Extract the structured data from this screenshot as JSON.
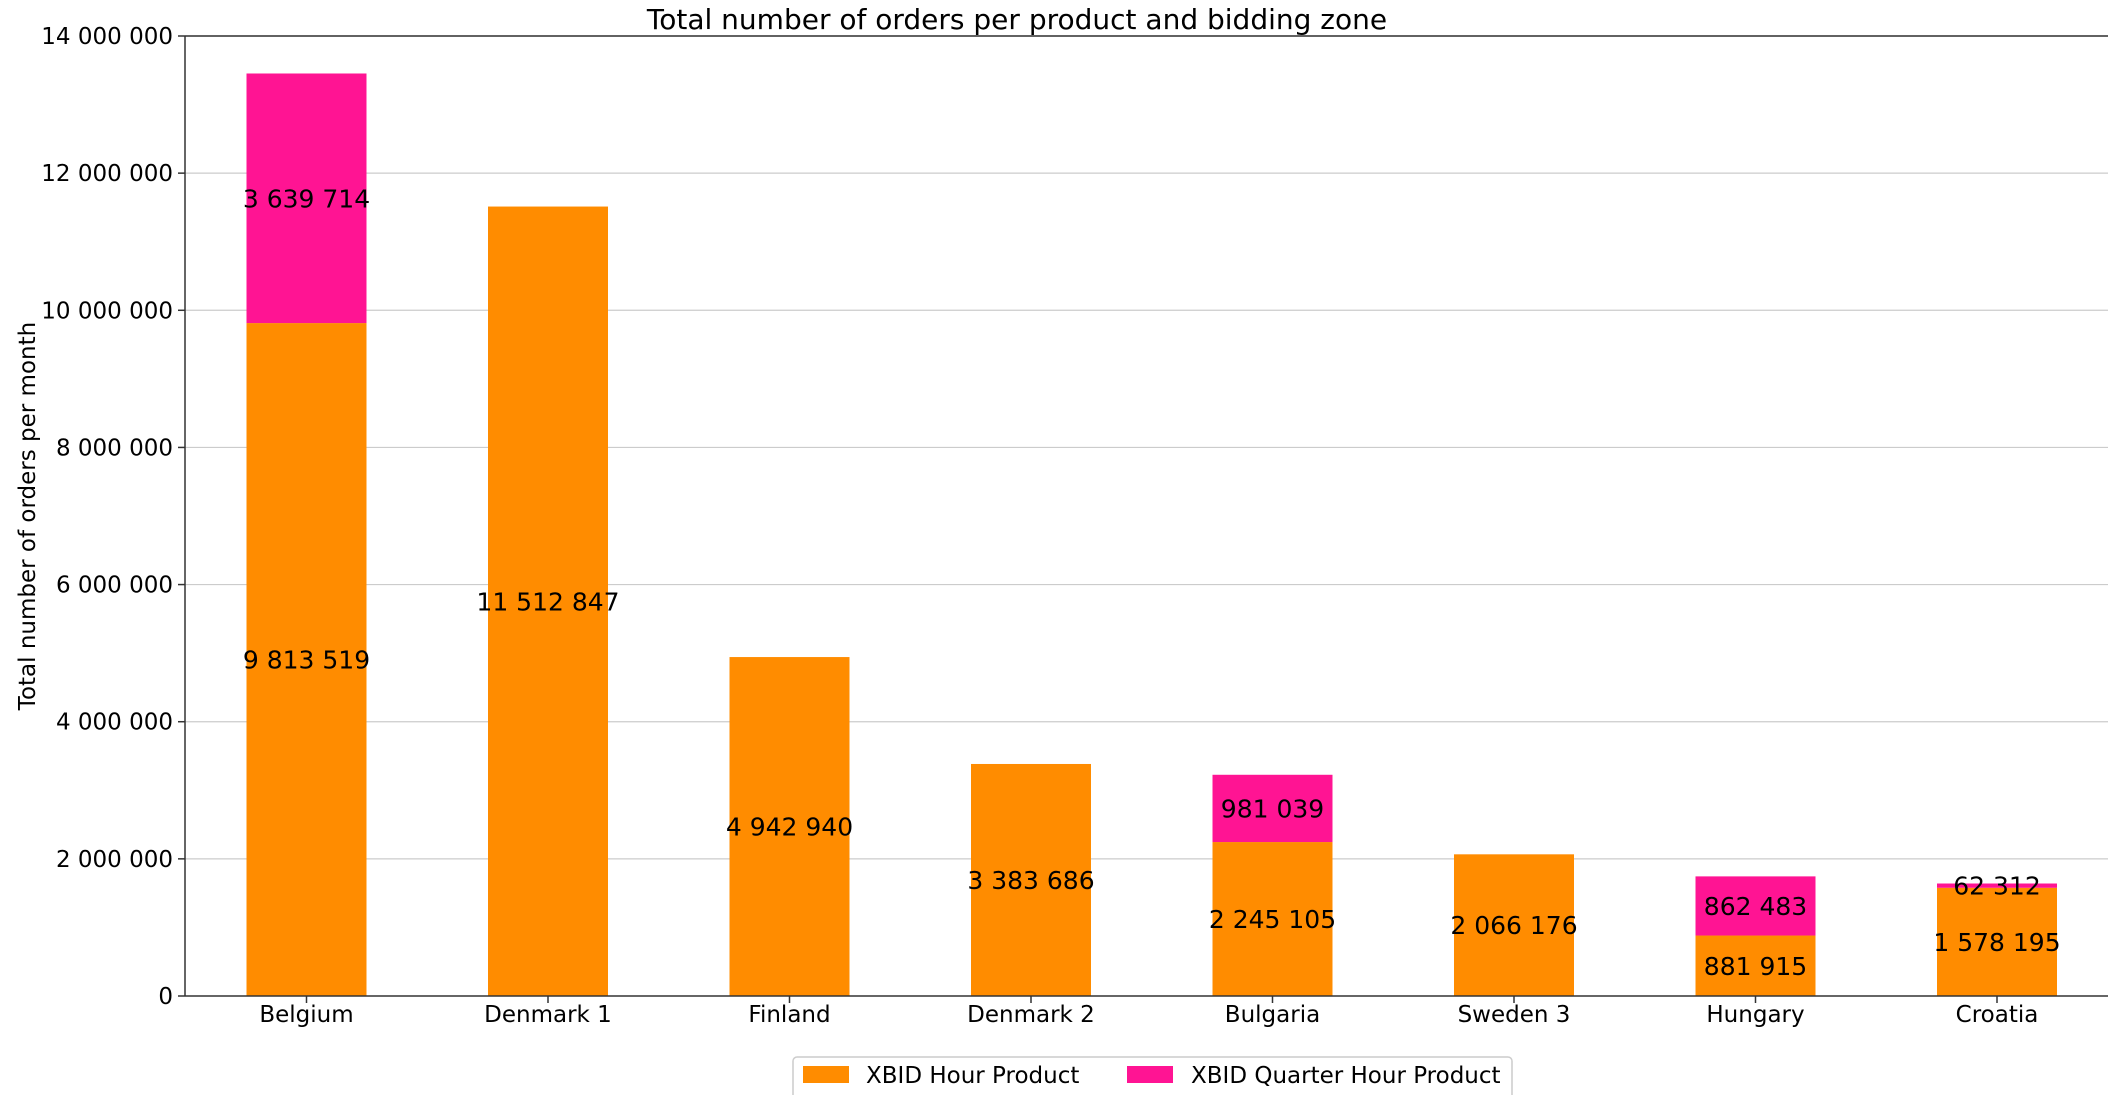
{
  "chart_data": {
    "type": "bar",
    "stacked": true,
    "title": "Total number of orders per product and bidding zone",
    "xlabel": "",
    "ylabel": "Total number of orders per month",
    "categories": [
      "Belgium",
      "Denmark 1",
      "Finland",
      "Denmark 2",
      "Bulgaria",
      "Sweden 3",
      "Hungary",
      "Croatia"
    ],
    "series": [
      {
        "name": "XBID Hour Product",
        "color": "#FF8C00",
        "values": [
          9813519,
          11512847,
          4942940,
          3383686,
          2245105,
          2066176,
          881915,
          1578195
        ],
        "labels": [
          "9 813 519",
          "11 512 847",
          "4 942 940",
          "3 383 686",
          "2 245 105",
          "2 066 176",
          "881 915",
          "1 578 195"
        ]
      },
      {
        "name": "XBID Quarter Hour Product",
        "color": "#FF1493",
        "values": [
          3639714,
          0,
          0,
          0,
          981039,
          0,
          862483,
          62312
        ],
        "labels": [
          "3 639 714",
          "",
          "",
          "",
          "981 039",
          "",
          "862 483",
          "62 312"
        ]
      }
    ],
    "ylim": [
      0,
      14000000
    ],
    "yticks": [
      0,
      2000000,
      4000000,
      6000000,
      8000000,
      10000000,
      12000000,
      14000000
    ],
    "ytick_labels": [
      "0",
      "2 000 000",
      "4 000 000",
      "6 000 000",
      "8 000 000",
      "10 000 000",
      "12 000 000",
      "14 000 000"
    ],
    "grid": "horizontal",
    "legend_position": "bottom-center"
  }
}
